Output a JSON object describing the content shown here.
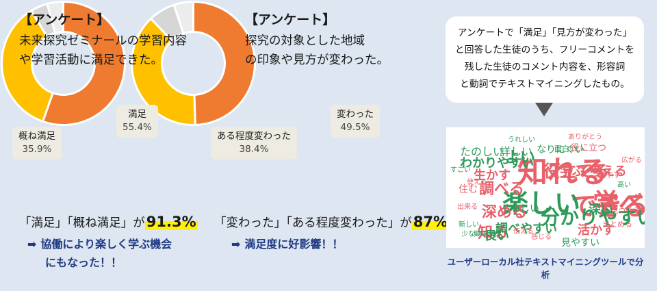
{
  "survey1": {
    "heading": "【アンケート】",
    "question_line1": "未来探究ゼミナールの学習内容",
    "question_line2": "や学習活動に満足できた。",
    "summary_text": "「満足」「概ね満足」が",
    "summary_value": "91.3%",
    "effect_arrow": "➡",
    "effect_line1": "協働により楽しく学ぶ機会",
    "effect_line2": "にもなった！！"
  },
  "survey2": {
    "heading": "【アンケート】",
    "question_line1": "探究の対象とした地域",
    "question_line2": "の印象や見方が変わった。",
    "summary_text": "「変わった」「ある程度変わった」が",
    "summary_value": "87%",
    "effect_arrow": "➡",
    "effect_line1": "満足度に好影響！！"
  },
  "chart_data": [
    {
      "type": "pie",
      "donut": true,
      "slices": [
        {
          "label": "満足",
          "value": 55.4,
          "value_label": "55.4%",
          "color": "#ee7b30"
        },
        {
          "label": "概ね満足",
          "value": 35.9,
          "value_label": "35.9%",
          "color": "#ffc000"
        },
        {
          "label": "",
          "value": 4.5,
          "color": "#d6d6d6"
        },
        {
          "label": "",
          "value": 4.2,
          "color": "#ececec"
        }
      ]
    },
    {
      "type": "pie",
      "donut": true,
      "slices": [
        {
          "label": "変わった",
          "value": 49.5,
          "value_label": "49.5%",
          "color": "#ee7b30"
        },
        {
          "label": "ある程度変わった",
          "value": 38.4,
          "value_label": "38.4%",
          "color": "#ffc000"
        },
        {
          "label": "",
          "value": 7.0,
          "color": "#d6d6d6"
        },
        {
          "label": "",
          "value": 5.1,
          "color": "#ececec"
        }
      ]
    }
  ],
  "bubble": {
    "line1": "アンケートで「満足」「見方が変わった」",
    "line2": "と回答した生徒のうち、フリーコメントを",
    "line3": "残した生徒のコメント内容を、形容詞",
    "line4": "と動詞でテキストマイニングしたもの。"
  },
  "cloud": {
    "words": [
      {
        "text": "知れる",
        "color": "#e8606a"
      },
      {
        "text": "できる",
        "color": "#e8606a"
      },
      {
        "text": "学べる",
        "color": "#e8606a"
      },
      {
        "text": "楽しい",
        "color": "#2e9a5a"
      },
      {
        "text": "分かりやすい",
        "color": "#2e9a5a"
      },
      {
        "text": "役立てる",
        "color": "#e8606a"
      },
      {
        "text": "調べる",
        "color": "#e8606a"
      },
      {
        "text": "深める",
        "color": "#e8606a"
      },
      {
        "text": "知る",
        "color": "#e8606a"
      },
      {
        "text": "良い",
        "color": "#2e9a5a"
      },
      {
        "text": "よい",
        "color": "#2e9a5a"
      },
      {
        "text": "詳しい",
        "color": "#2e9a5a"
      },
      {
        "text": "たのしい",
        "color": "#2e9a5a"
      },
      {
        "text": "わかりやすい",
        "color": "#2e9a5a"
      },
      {
        "text": "生かす",
        "color": "#e8606a"
      },
      {
        "text": "学ぶ",
        "color": "#e8606a"
      },
      {
        "text": "考える",
        "color": "#e8606a"
      },
      {
        "text": "深い",
        "color": "#2e9a5a"
      },
      {
        "text": "調べやすい",
        "color": "#2e9a5a"
      },
      {
        "text": "活かす",
        "color": "#e8606a"
      },
      {
        "text": "見やすい",
        "color": "#2e9a5a"
      },
      {
        "text": "住む",
        "color": "#e8606a"
      },
      {
        "text": "くわしい",
        "color": "#2e9a5a"
      },
      {
        "text": "なりにくい",
        "color": "#2e9a5a"
      },
      {
        "text": "役に立つ",
        "color": "#e8606a"
      },
      {
        "text": "面白い",
        "color": "#2e9a5a"
      },
      {
        "text": "まとめる",
        "color": "#e8606a"
      },
      {
        "text": "見つける",
        "color": "#e8606a"
      },
      {
        "text": "増やす",
        "color": "#e8606a"
      },
      {
        "text": "出来る",
        "color": "#e8606a"
      },
      {
        "text": "使える",
        "color": "#e8606a"
      },
      {
        "text": "新しい",
        "color": "#2e9a5a"
      },
      {
        "text": "少ない",
        "color": "#2e9a5a"
      },
      {
        "text": "興味深い",
        "color": "#2e9a5a"
      },
      {
        "text": "うれしい",
        "color": "#2e9a5a"
      },
      {
        "text": "ありがとう",
        "color": "#e8606a"
      },
      {
        "text": "感じる",
        "color": "#e8606a"
      },
      {
        "text": "伝える",
        "color": "#e8606a"
      },
      {
        "text": "すごい",
        "color": "#2e9a5a"
      },
      {
        "text": "高い",
        "color": "#2e9a5a"
      },
      {
        "text": "広がる",
        "color": "#e8606a"
      }
    ]
  },
  "caption": "ユーザーローカル社テキストマイニングツールで分析"
}
